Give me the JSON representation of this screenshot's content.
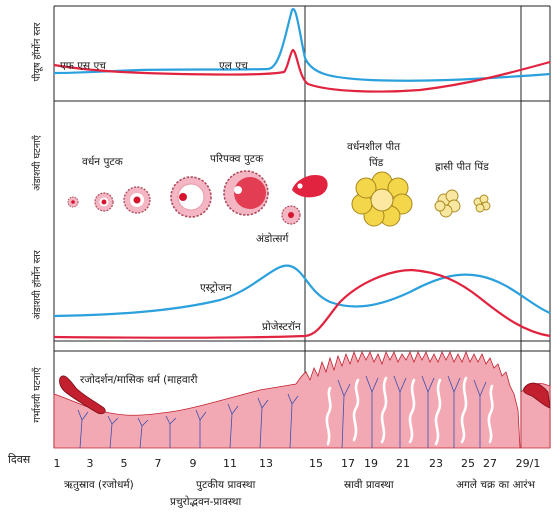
{
  "axis_labels": {
    "pituitary_hormone_level": "पीयूष हॉर्मोन स्तर",
    "ovarian_events": "अंडाशयी घटनाएँ",
    "ovarian_hormone_level": "अंडाशयी हॉर्मोन स्तर",
    "uterine_events": "गर्भाशयी घटनाएँ",
    "days": "दिवस"
  },
  "hormones": {
    "fsh": "एफ एस एच",
    "lh": "एल एच",
    "estrogen": "एस्ट्रोजन",
    "progesterone": "प्रोजेस्टरॉन"
  },
  "ovary_labels": {
    "growing_follicle": "वर्धन पुटक",
    "mature_follicle": "परिपक्व पुटक",
    "ovum": "अंडोत्सर्ग",
    "growing_corpus_luteum_line1": "वर्धनशील पीत",
    "growing_corpus_luteum_line2": "पिंड",
    "degenerating_corpus_luteum": "ह्रासी पीत पिंड"
  },
  "uterus_labels": {
    "menstruation": "रजोदर्शन/मासिक धर्म (माहवारी"
  },
  "day_ticks": [
    "1",
    "3",
    "5",
    "7",
    "9",
    "11",
    "13",
    "15",
    "17",
    "19",
    "21",
    "23",
    "25",
    "27",
    "29/1"
  ],
  "phases": {
    "menstrual": "ऋतुस्राव (रजोधर्म)",
    "follicular_line1": "पुटकीय प्रावस्था",
    "follicular_line2": "प्रचुरोद्भवन-प्रावस्था",
    "secretory": "स्रावी प्रावस्था",
    "next_cycle": "अगले चक्र का आरंभ"
  },
  "colors": {
    "blue_curve": "#2aa0dc",
    "red_curve": "#e2233f",
    "follicle_pink": "#f3b6c2",
    "follicle_red": "#d7142e",
    "corpus_luteum_yellow": "#f4d64a",
    "endometrium": "#e9737f",
    "endometrium_dark": "#c2202f",
    "vessel_blue": "#3c4fb0"
  }
}
